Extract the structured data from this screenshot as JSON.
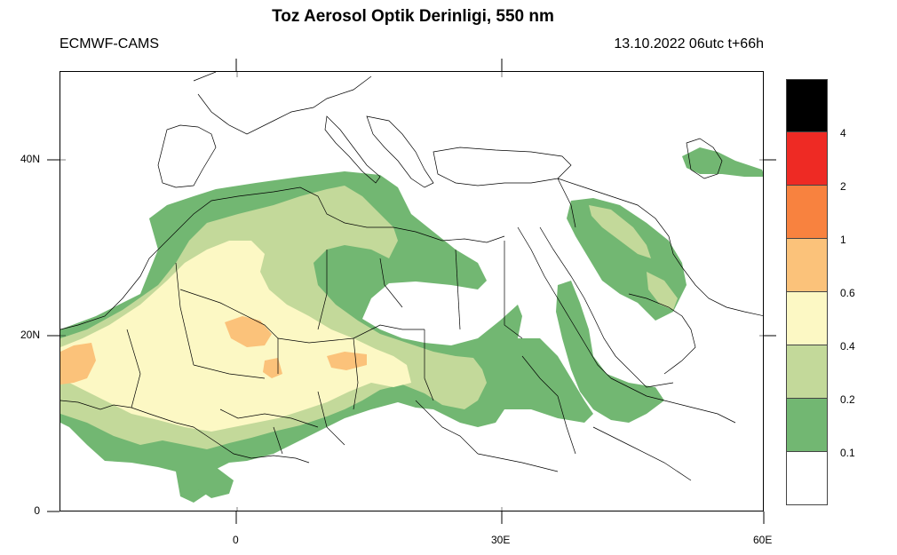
{
  "header": {
    "title": "Toz Aerosol Optik Derinligi, 550 nm",
    "source": "ECMWF-CAMS",
    "run": "13.10.2022 06utc t+66h"
  },
  "axes": {
    "x_ticks": [
      "0",
      "30E",
      "60E"
    ],
    "y_ticks": [
      "40N",
      "20N",
      "0"
    ]
  },
  "legend": {
    "labels": [
      "4",
      "2",
      "1",
      "0.6",
      "0.4",
      "0.2",
      "0.1"
    ],
    "colors": [
      "#000000",
      "#ee2a24",
      "#f8823f",
      "#fbc27a",
      "#fcf8c4",
      "#c3d99a",
      "#72b772",
      "#ffffff"
    ]
  },
  "palette": {
    "d01": "#72b772",
    "d02": "#c3d99a",
    "d04": "#fcf8c4",
    "d06": "#fbc27a",
    "d1": "#f8823f"
  }
}
